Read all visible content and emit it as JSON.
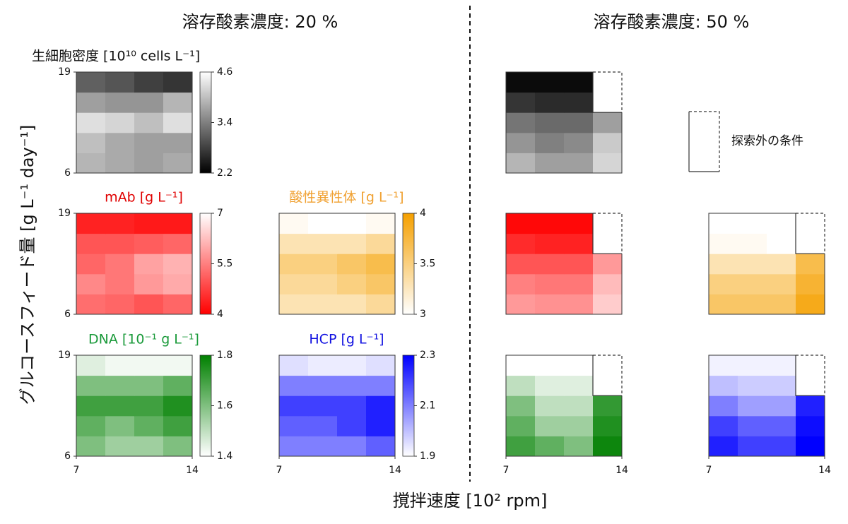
{
  "figure": {
    "headers": [
      "溶存酸素濃度: 20 %",
      "溶存酸素濃度: 50 %"
    ],
    "xlabel": "撹拌速度 [10² rpm]",
    "ylabel": "グルコースフィード量 [g L⁻¹ day⁻¹]",
    "legend_label": "探索外の条件"
  },
  "chart_data": [
    {
      "type": "heatmap",
      "title": "生細胞密度 [10¹⁰ cells L⁻¹]",
      "title_color": "#111111",
      "cmap": [
        "#000000",
        "#ffffff"
      ],
      "clim": [
        2.2,
        4.6
      ],
      "cticks": [
        2.2,
        3.4,
        4.6
      ],
      "xlim": [
        7,
        14
      ],
      "ylim": [
        6,
        19
      ],
      "yticks": [
        6,
        19
      ],
      "z": [
        [
          3.9,
          3.8,
          3.7,
          3.8
        ],
        [
          4.0,
          3.8,
          3.7,
          3.7
        ],
        [
          4.3,
          4.2,
          4.0,
          4.3
        ],
        [
          3.7,
          3.6,
          3.6,
          3.9
        ],
        [
          3.1,
          3.0,
          2.8,
          2.7
        ]
      ]
    },
    {
      "type": "heatmap",
      "title": "mAb [g L⁻¹]",
      "title_color": "#e00000",
      "cmap": [
        "#ff0000",
        "#ffffff"
      ],
      "clim": [
        4.0,
        7.0
      ],
      "cticks": [
        4.0,
        5.5,
        7.0
      ],
      "xlim": [
        7,
        14
      ],
      "ylim": [
        6,
        19
      ],
      "yticks": [
        6,
        19
      ],
      "z": [
        [
          5.3,
          5.2,
          5.0,
          5.2
        ],
        [
          5.6,
          5.4,
          5.8,
          6.0
        ],
        [
          5.2,
          5.4,
          5.9,
          6.1
        ],
        [
          5.0,
          5.0,
          5.1,
          5.2
        ],
        [
          4.4,
          4.4,
          4.3,
          4.3
        ]
      ]
    },
    {
      "type": "heatmap",
      "title": "酸性異性体 [g L⁻¹]",
      "title_color": "#f0a030",
      "cmap": [
        "#ffffff",
        "#f5a000"
      ],
      "clim": [
        3.0,
        4.0
      ],
      "cticks": [
        3.0,
        3.5,
        4.0
      ],
      "xlim": [
        7,
        14
      ],
      "ylim": [
        6,
        19
      ],
      "z": [
        [
          3.3,
          3.3,
          3.3,
          3.4
        ],
        [
          3.4,
          3.4,
          3.5,
          3.6
        ],
        [
          3.5,
          3.5,
          3.6,
          3.7
        ],
        [
          3.3,
          3.3,
          3.3,
          3.4
        ],
        [
          3.05,
          3.0,
          3.0,
          3.05
        ]
      ]
    },
    {
      "type": "heatmap",
      "title": "DNA [10⁻¹ g L⁻¹]",
      "title_color": "#1a9a3a",
      "cmap": [
        "#ffffff",
        "#008000"
      ],
      "clim": [
        1.4,
        1.8
      ],
      "cticks": [
        1.4,
        1.6,
        1.8
      ],
      "xlim": [
        7,
        14
      ],
      "ylim": [
        6,
        19
      ],
      "xticks": [
        7,
        14
      ],
      "yticks": [
        6,
        19
      ],
      "z": [
        [
          1.6,
          1.55,
          1.55,
          1.6
        ],
        [
          1.65,
          1.6,
          1.65,
          1.7
        ],
        [
          1.7,
          1.7,
          1.7,
          1.75
        ],
        [
          1.6,
          1.6,
          1.6,
          1.65
        ],
        [
          1.45,
          1.42,
          1.42,
          1.42
        ]
      ]
    },
    {
      "type": "heatmap",
      "title": "HCP [g L⁻¹]",
      "title_color": "#1010e0",
      "cmap": [
        "#ffffff",
        "#0000ff"
      ],
      "clim": [
        1.9,
        2.3
      ],
      "cticks": [
        1.9,
        2.1,
        2.3
      ],
      "xlim": [
        7,
        14
      ],
      "ylim": [
        6,
        19
      ],
      "xticks": [
        7,
        14
      ],
      "z": [
        [
          2.1,
          2.1,
          2.1,
          2.15
        ],
        [
          2.15,
          2.15,
          2.2,
          2.25
        ],
        [
          2.2,
          2.2,
          2.2,
          2.25
        ],
        [
          2.1,
          2.1,
          2.1,
          2.1
        ],
        [
          1.95,
          1.93,
          1.93,
          1.95
        ]
      ]
    },
    {
      "type": "heatmap",
      "cmap": [
        "#000000",
        "#ffffff"
      ],
      "clim": [
        2.2,
        4.6
      ],
      "xlim": [
        7,
        14
      ],
      "ylim": [
        6,
        19
      ],
      "z": [
        [
          3.9,
          3.7,
          3.7,
          4.2
        ],
        [
          3.6,
          3.4,
          3.5,
          4.1
        ],
        [
          3.3,
          3.2,
          3.2,
          3.7
        ],
        [
          2.7,
          2.6,
          2.6,
          null
        ],
        [
          2.3,
          2.3,
          2.3,
          null
        ]
      ]
    },
    {
      "type": "heatmap",
      "cmap": [
        "#ff0000",
        "#ffffff"
      ],
      "clim": [
        4.0,
        7.0
      ],
      "xlim": [
        7,
        14
      ],
      "ylim": [
        6,
        19
      ],
      "z": [
        [
          5.8,
          5.7,
          5.7,
          6.4
        ],
        [
          5.5,
          5.4,
          5.4,
          6.2
        ],
        [
          5.0,
          5.0,
          5.0,
          5.8
        ],
        [
          4.5,
          4.4,
          4.4,
          null
        ],
        [
          4.1,
          4.1,
          4.1,
          null
        ]
      ]
    },
    {
      "type": "heatmap",
      "cmap": [
        "#ffffff",
        "#f5a000"
      ],
      "clim": [
        3.0,
        4.0
      ],
      "xlim": [
        7,
        14
      ],
      "ylim": [
        6,
        19
      ],
      "z": [
        [
          3.6,
          3.6,
          3.6,
          3.9
        ],
        [
          3.5,
          3.5,
          3.5,
          3.8
        ],
        [
          3.3,
          3.3,
          3.3,
          3.7
        ],
        [
          3.05,
          3.05,
          3.0,
          null
        ],
        [
          3.0,
          3.0,
          3.0,
          null
        ]
      ]
    },
    {
      "type": "heatmap",
      "cmap": [
        "#ffffff",
        "#008000"
      ],
      "clim": [
        1.4,
        1.8
      ],
      "xlim": [
        7,
        14
      ],
      "ylim": [
        6,
        19
      ],
      "xticks": [
        7,
        14
      ],
      "z": [
        [
          1.7,
          1.65,
          1.6,
          1.78
        ],
        [
          1.65,
          1.55,
          1.55,
          1.75
        ],
        [
          1.6,
          1.5,
          1.5,
          1.72
        ],
        [
          1.5,
          1.45,
          1.45,
          null
        ],
        [
          1.4,
          1.4,
          1.4,
          null
        ]
      ]
    },
    {
      "type": "heatmap",
      "cmap": [
        "#ffffff",
        "#0000ff"
      ],
      "clim": [
        1.9,
        2.3
      ],
      "xlim": [
        7,
        14
      ],
      "ylim": [
        6,
        19
      ],
      "xticks": [
        7,
        14
      ],
      "z": [
        [
          2.25,
          2.2,
          2.2,
          2.3
        ],
        [
          2.2,
          2.15,
          2.15,
          2.28
        ],
        [
          2.1,
          2.05,
          2.05,
          2.25
        ],
        [
          2.0,
          1.98,
          1.98,
          null
        ],
        [
          1.92,
          1.92,
          1.92,
          null
        ]
      ]
    }
  ]
}
